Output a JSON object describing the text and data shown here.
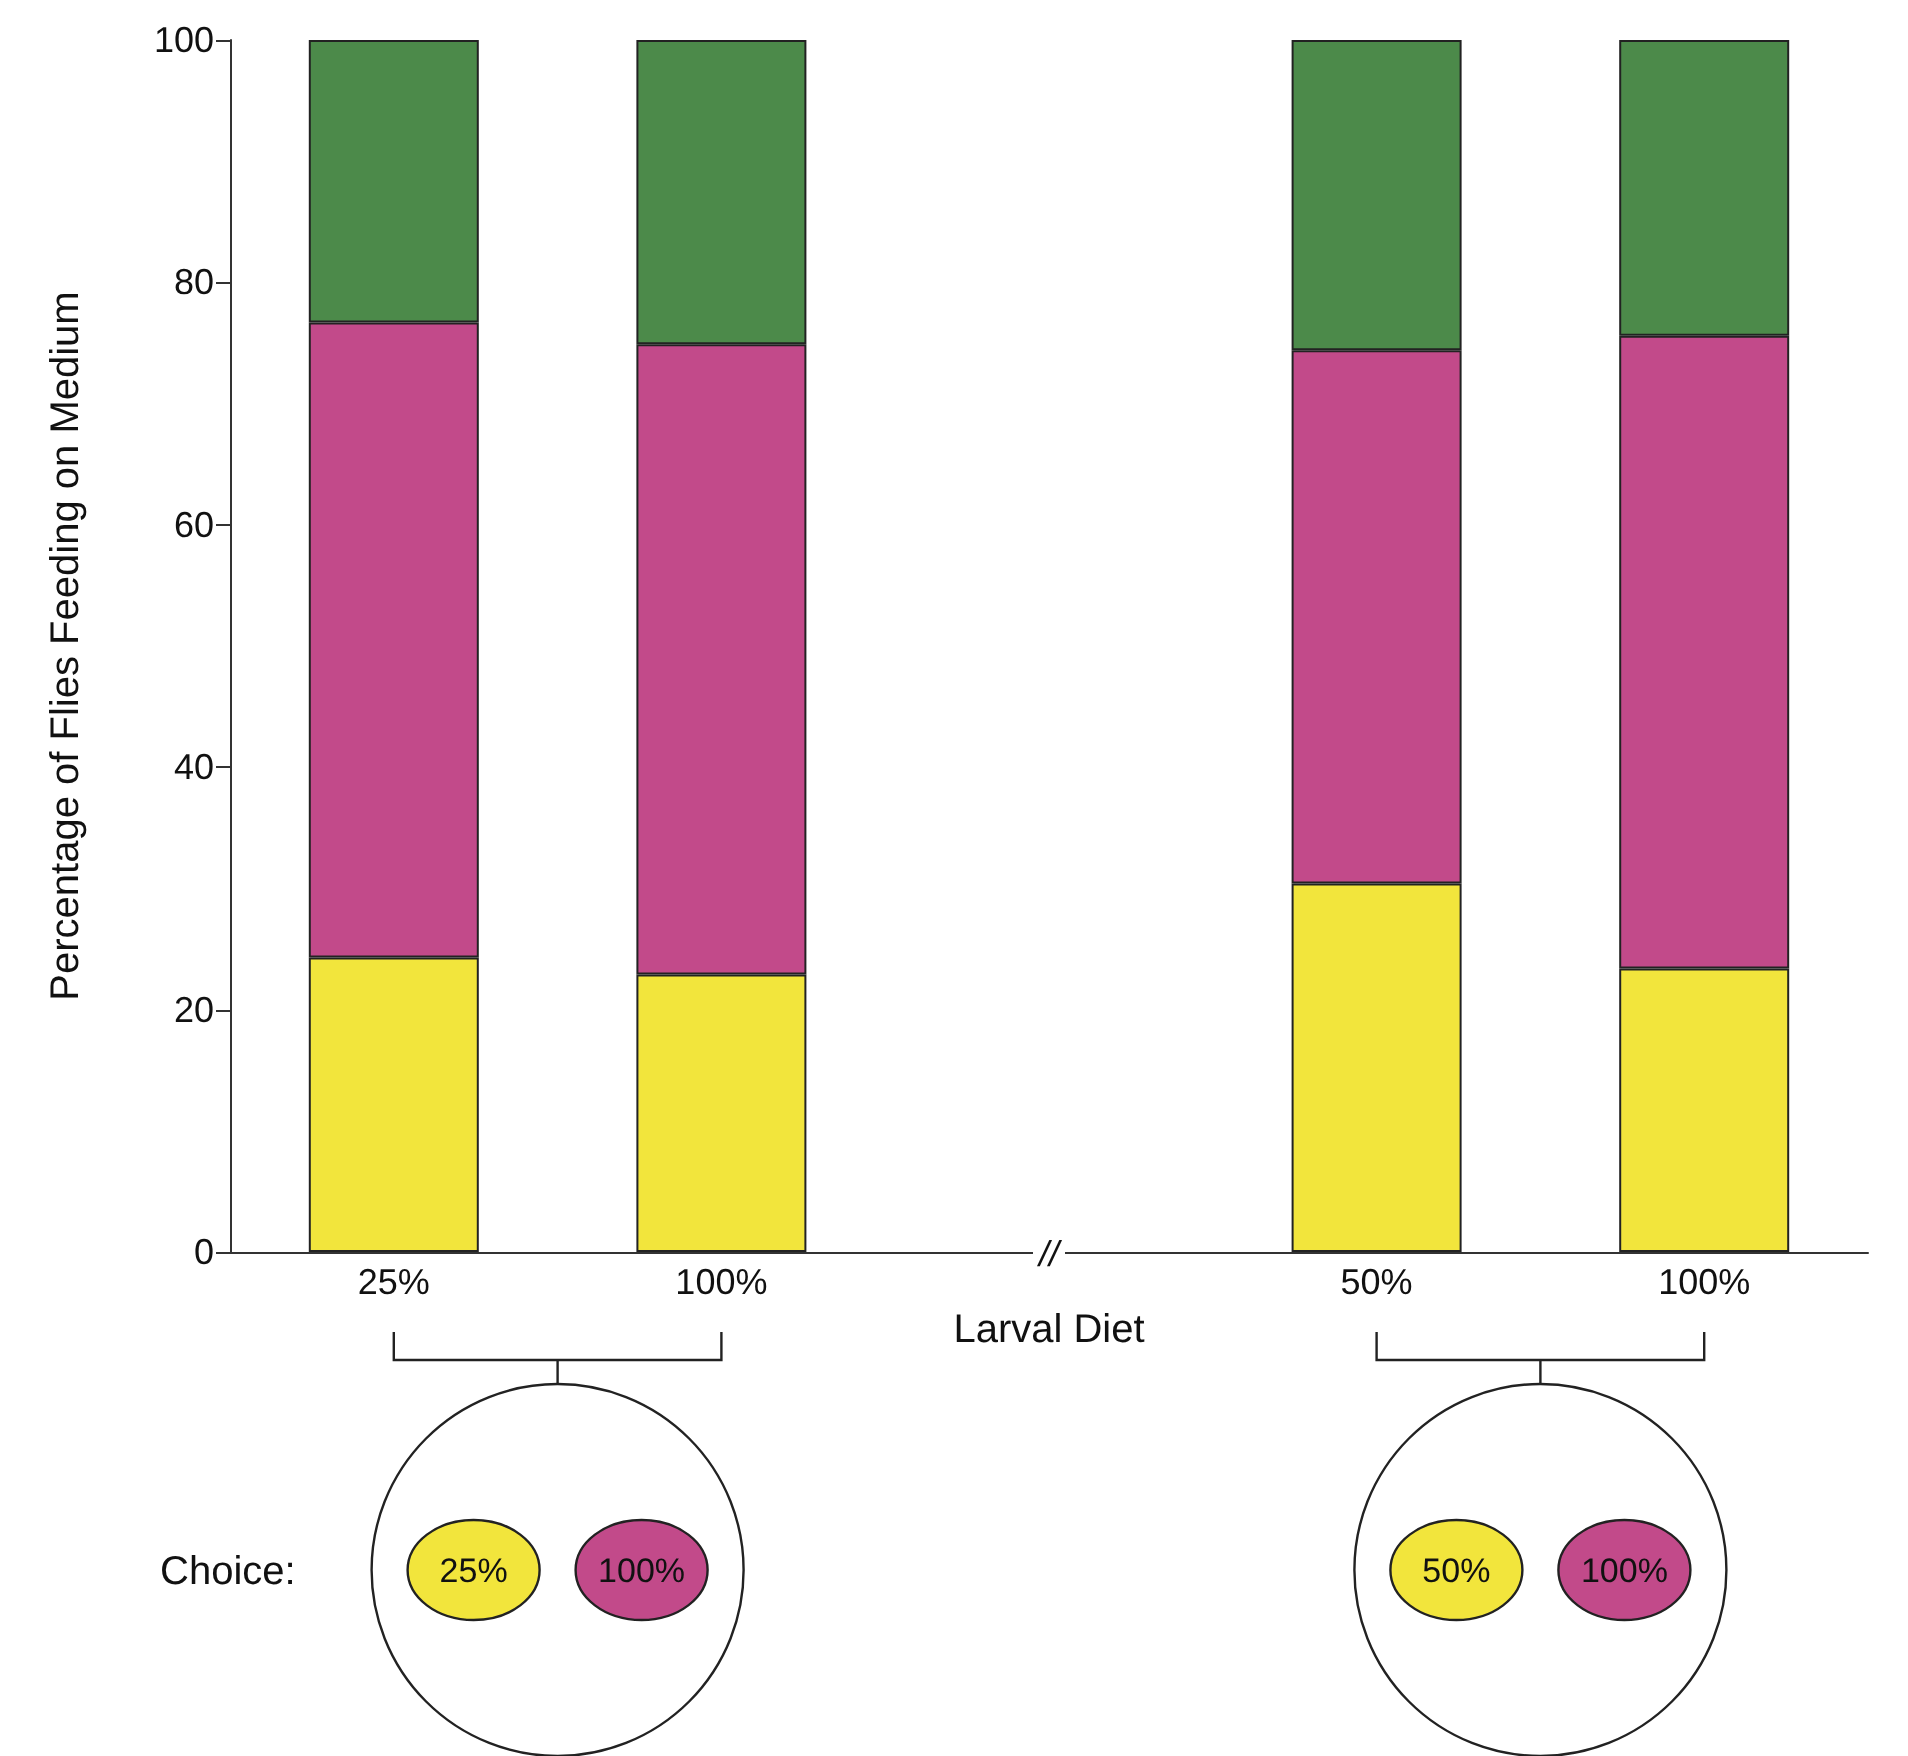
{
  "chart_data": {
    "type": "bar",
    "stacked": true,
    "xlabel": "Larval Diet",
    "ylabel": "Percentage of Flies Feeding on Medium",
    "categories": [
      "25%",
      "100%",
      null,
      "50%",
      "100%"
    ],
    "series": [
      {
        "color": "#f2e53c",
        "values": [
          24.3,
          22.9,
          null,
          30.4,
          23.4
        ]
      },
      {
        "color": "#c24a8a",
        "values": [
          52.4,
          52.0,
          null,
          44.0,
          52.2
        ]
      },
      {
        "color": "#4c8a4a",
        "values": [
          23.3,
          25.1,
          null,
          25.6,
          24.4
        ]
      }
    ],
    "ylim": [
      0,
      100
    ],
    "yticks": [
      0,
      20,
      40,
      60,
      80,
      100
    ],
    "grid": false,
    "annotations": [
      "//",
      "Choice:",
      "25%",
      "100%",
      "50%",
      "100%"
    ]
  }
}
